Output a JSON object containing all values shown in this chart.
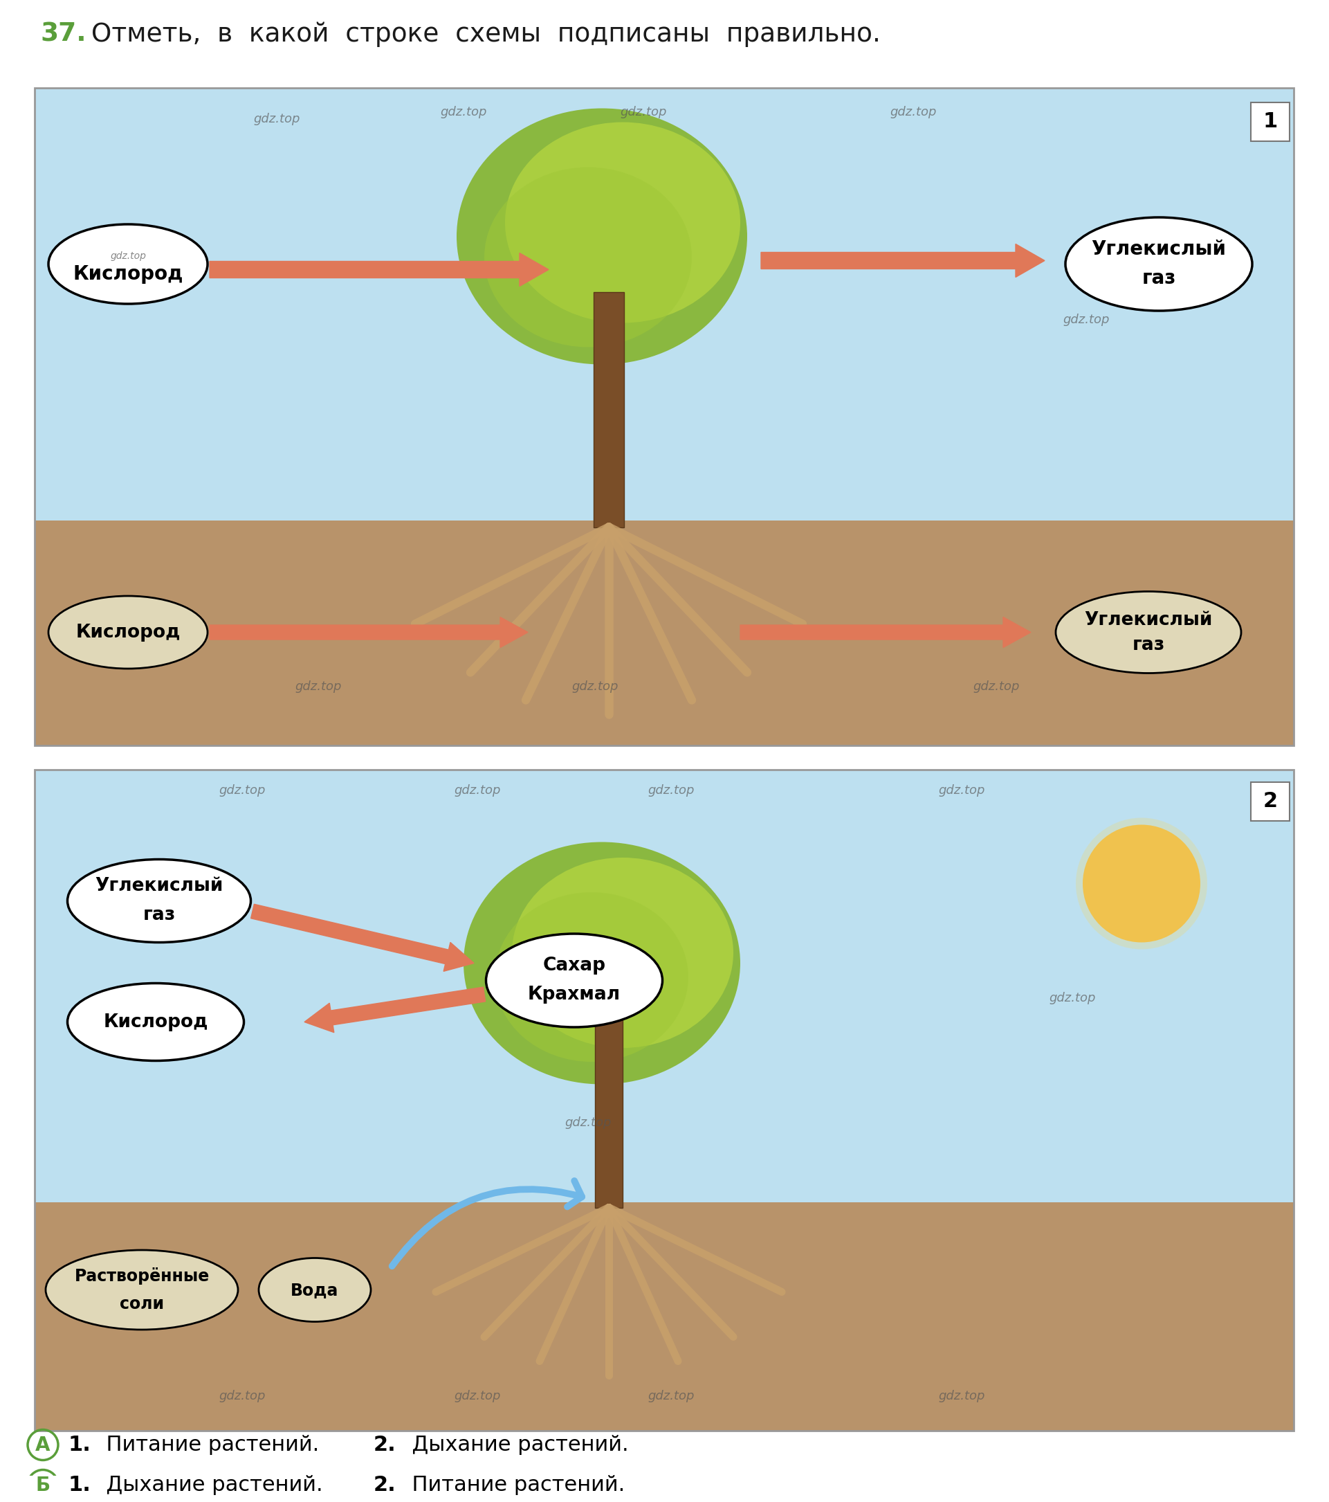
{
  "title_number": "37",
  "title_number_color": "#5a9e3a",
  "title_text": " Отметь,  в  какой  строке  схемы  подписаны  правильно.",
  "title_text_color": "#1a1a1a",
  "bg_color": "#ffffff",
  "diagram1": {
    "bg_sky": "#bde0f0",
    "bg_ground": "#b8936a",
    "label": "1",
    "left_oval_text": "Кислород",
    "right_oval_top": "Углекислый",
    "right_oval_bot": "газ",
    "bottom_left_oval_text": "Кислород",
    "bottom_right_top": "Углекислый",
    "bottom_right_bot": "газ",
    "arrow_color": "#e07858",
    "watermark": "gdz.top"
  },
  "diagram2": {
    "bg_sky": "#bde0f0",
    "bg_ground": "#b8936a",
    "label": "2",
    "top_left_top": "Углекислый",
    "top_left_bot": "газ",
    "mid_left_text": "Кислород",
    "center_top": "Сахар",
    "center_bot": "Крахмал",
    "bottom_left_top": "Растворённые",
    "bottom_left_bot": "соли",
    "bottom_mid_text": "Вода",
    "arrow_color_orange": "#e07858",
    "arrow_color_blue": "#70b8e8",
    "sun_color": "#f5c040",
    "watermark": "gdz.top"
  },
  "answer_A_label": "А",
  "answer_A_text1_bold": "1.",
  "answer_A_text1": "  Питание растений.  ",
  "answer_A_text2_bold": "2.",
  "answer_A_text2": "  Дыхание растений.",
  "answer_B_label": "Б",
  "answer_B_text1_bold": "1.",
  "answer_B_text1": "  Дыхание растений.  ",
  "answer_B_text2_bold": "2.",
  "answer_B_text2": "  Питание растений.",
  "answer_circle_color": "#5a9e3a"
}
